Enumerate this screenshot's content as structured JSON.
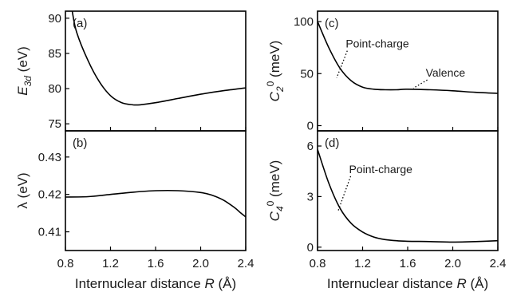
{
  "x_tick_labels": [
    "0.8",
    "1.2",
    "1.6",
    "2.0",
    "2.4"
  ],
  "x_label": {
    "prefix": "Internuclear distance ",
    "var": "R",
    "suffix": " (Å)"
  },
  "chart_data": [
    {
      "id": "a",
      "panel_label": "(a)",
      "type": "line",
      "ylabel": {
        "sym": "E",
        "sub": "3d",
        "sup": "",
        "unit": " (eV)"
      },
      "xlim": [
        0.8,
        2.4
      ],
      "ylim": [
        74,
        91
      ],
      "yticks": [
        75,
        80,
        85,
        90
      ],
      "ytick_labels": [
        "75",
        "80",
        "85",
        "90"
      ],
      "series": [
        {
          "x": [
            0.86,
            0.9,
            1.0,
            1.1,
            1.2,
            1.3,
            1.4,
            1.46,
            1.6,
            1.8,
            2.0,
            2.2,
            2.4
          ],
          "y": [
            91.0,
            88.0,
            84.0,
            81.0,
            79.0,
            78.0,
            77.7,
            77.7,
            78.0,
            78.6,
            79.2,
            79.7,
            80.1
          ]
        }
      ],
      "annotations": []
    },
    {
      "id": "b",
      "panel_label": "(b)",
      "type": "line",
      "ylabel": {
        "sym": "λ",
        "sub": "",
        "sup": "",
        "unit": " (eV)"
      },
      "xlim": [
        0.8,
        2.4
      ],
      "ylim": [
        0.405,
        0.437
      ],
      "yticks": [
        0.41,
        0.42,
        0.43
      ],
      "ytick_labels": [
        "0.41",
        "0.42",
        "0.43"
      ],
      "series": [
        {
          "x": [
            0.8,
            1.0,
            1.2,
            1.4,
            1.6,
            1.8,
            2.0,
            2.1,
            2.2,
            2.3,
            2.35,
            2.4
          ],
          "y": [
            0.4193,
            0.4194,
            0.42,
            0.4206,
            0.421,
            0.421,
            0.4205,
            0.4198,
            0.4185,
            0.4165,
            0.4152,
            0.414
          ]
        }
      ],
      "annotations": []
    },
    {
      "id": "c",
      "panel_label": "(c)",
      "type": "line",
      "ylabel": {
        "sym": "C",
        "sub": "2",
        "sup": "0",
        "unit": " (meV)"
      },
      "xlim": [
        0.8,
        2.4
      ],
      "ylim": [
        -5,
        110
      ],
      "yticks": [
        0,
        50,
        100
      ],
      "ytick_labels": [
        "0",
        "50",
        "100"
      ],
      "series": [
        {
          "x": [
            0.8,
            0.9,
            1.0,
            1.1,
            1.2,
            1.3,
            1.4,
            1.5,
            1.6,
            1.8,
            2.0,
            2.2,
            2.4
          ],
          "y": [
            100,
            75,
            55,
            43,
            37,
            35,
            34.5,
            34.5,
            35,
            34.5,
            33.5,
            32,
            31
          ]
        }
      ],
      "annotations": [
        {
          "text": "Point-charge",
          "x": 1.05,
          "y": 75,
          "to_x": 0.97,
          "to_y": 46
        },
        {
          "text": "Valence",
          "x": 1.76,
          "y": 47,
          "to_x": 1.65,
          "to_y": 36
        }
      ]
    },
    {
      "id": "d",
      "panel_label": "(d)",
      "type": "line",
      "ylabel": {
        "sym": "C",
        "sub": "4",
        "sup": "0",
        "unit": " (meV)"
      },
      "xlim": [
        0.8,
        2.4
      ],
      "ylim": [
        -0.2,
        6.9
      ],
      "yticks": [
        0,
        3,
        6
      ],
      "ytick_labels": [
        "0",
        "3",
        "6"
      ],
      "series": [
        {
          "x": [
            0.8,
            0.9,
            1.0,
            1.1,
            1.2,
            1.3,
            1.4,
            1.5,
            1.6,
            1.8,
            2.0,
            2.2,
            2.4
          ],
          "y": [
            5.8,
            3.8,
            2.3,
            1.4,
            0.9,
            0.6,
            0.45,
            0.38,
            0.35,
            0.33,
            0.3,
            0.33,
            0.38
          ]
        }
      ],
      "annotations": [
        {
          "text": "Point-charge",
          "x": 1.08,
          "y": 4.4,
          "to_x": 0.98,
          "to_y": 2.1
        }
      ]
    }
  ]
}
